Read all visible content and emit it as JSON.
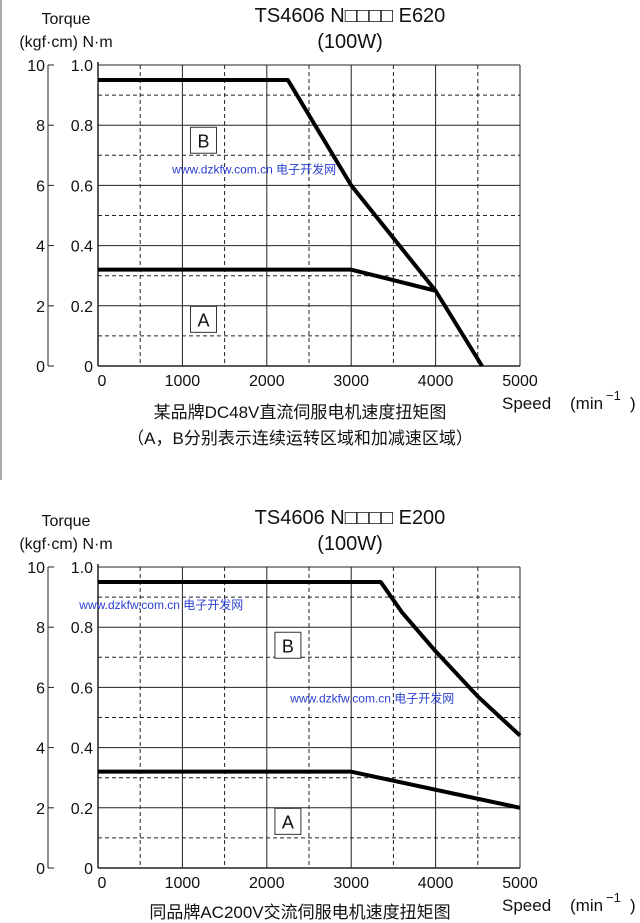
{
  "watermark": "www.dzkfw.com.cn 电子开发网",
  "chart_data": [
    {
      "type": "line",
      "title": "TS4606  N□□□□  E620",
      "subtitle": "(100W)",
      "ylabel": "Torque",
      "ylabel_units": "(kgf·cm) N·m",
      "xlabel": "Speed",
      "xlabel_units": "(min",
      "xlabel_exp": "−1",
      "xlabel_close": ")",
      "xlim": [
        0,
        5000
      ],
      "ylim": [
        0,
        1.0
      ],
      "x_ticks": [
        "0",
        "1000",
        "2000",
        "3000",
        "4000",
        "5000"
      ],
      "y_ticks": [
        "0",
        "0.2",
        "0.4",
        "0.6",
        "0.8",
        "1.0"
      ],
      "y2_ticks": [
        "0",
        "2",
        "4",
        "6",
        "8",
        "10"
      ],
      "grid": true,
      "series": [
        {
          "name": "B",
          "x": [
            0,
            2250,
            3000,
            4000,
            4550
          ],
          "y": [
            0.95,
            0.95,
            0.6,
            0.25,
            0
          ]
        },
        {
          "name": "A",
          "x": [
            0,
            3000,
            4000
          ],
          "y": [
            0.32,
            0.32,
            0.25
          ]
        }
      ],
      "region_labels": [
        {
          "text": "B",
          "x": 1250,
          "y": 0.75
        },
        {
          "text": "A",
          "x": 1250,
          "y": 0.155
        }
      ],
      "caption": [
        "某品牌DC48V直流伺服电机速度扭矩图",
        "（A，B分别表示连续运转区域和加减速区域）"
      ],
      "watermarks": [
        {
          "x": 1850,
          "y": 0.64
        }
      ]
    },
    {
      "type": "line",
      "title": "TS4606  N□□□□  E200",
      "subtitle": "(100W)",
      "ylabel": "Torque",
      "ylabel_units": "(kgf·cm) N·m",
      "xlabel": "Speed",
      "xlabel_units": "(min",
      "xlabel_exp": "−1",
      "xlabel_close": ")",
      "xlim": [
        0,
        5000
      ],
      "ylim": [
        0,
        1.0
      ],
      "x_ticks": [
        "0",
        "1000",
        "2000",
        "3000",
        "4000",
        "5000"
      ],
      "y_ticks": [
        "0",
        "0.2",
        "0.4",
        "0.6",
        "0.8",
        "1.0"
      ],
      "y2_ticks": [
        "0",
        "2",
        "4",
        "6",
        "8",
        "10"
      ],
      "grid": true,
      "series": [
        {
          "name": "B",
          "x": [
            0,
            3350,
            3600,
            4000,
            4500,
            5000
          ],
          "y": [
            0.95,
            0.95,
            0.85,
            0.72,
            0.57,
            0.44
          ]
        },
        {
          "name": "A",
          "x": [
            0,
            3000,
            5000
          ],
          "y": [
            0.32,
            0.32,
            0.2
          ]
        }
      ],
      "region_labels": [
        {
          "text": "B",
          "x": 2250,
          "y": 0.74
        },
        {
          "text": "A",
          "x": 2250,
          "y": 0.155
        }
      ],
      "caption": [
        "同品牌AC200V交流伺服电机速度扭矩图"
      ],
      "watermarks": [
        {
          "x": 750,
          "y": 0.86
        },
        {
          "x": 3250,
          "y": 0.55
        }
      ]
    }
  ]
}
